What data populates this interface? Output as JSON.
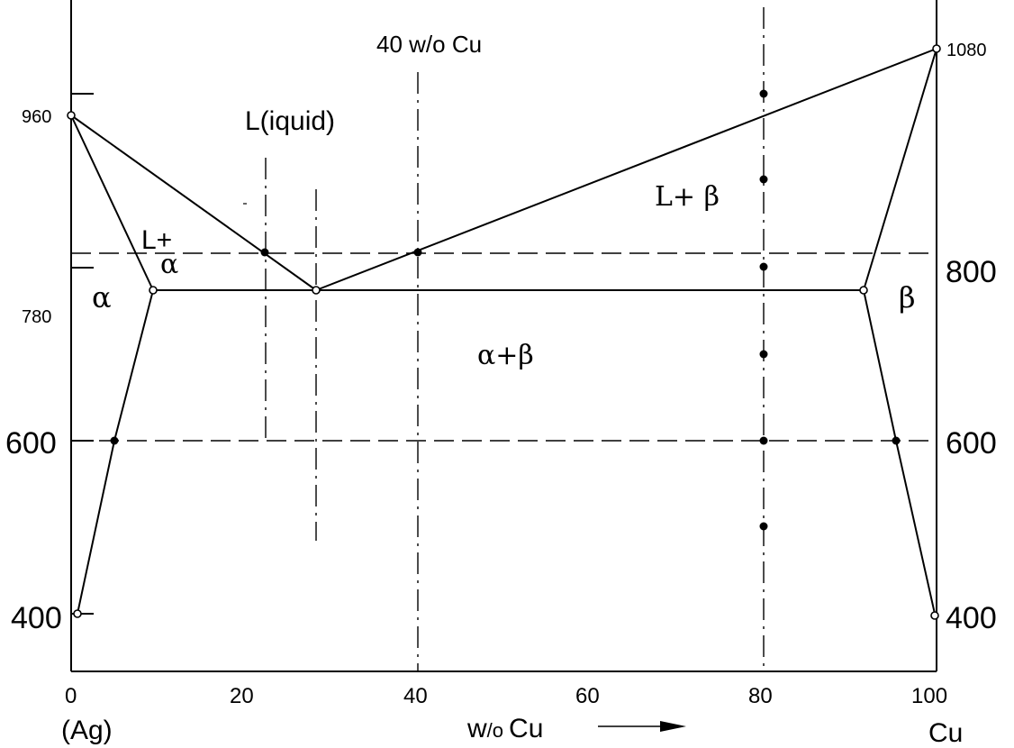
{
  "title_label": "40 w/o Cu",
  "xaxis": {
    "ticks": [
      {
        "value": 0,
        "label": "0"
      },
      {
        "value": 20,
        "label": "20"
      },
      {
        "value": 40,
        "label": "40"
      },
      {
        "value": 60,
        "label": "60"
      },
      {
        "value": 80,
        "label": "80"
      },
      {
        "value": 100,
        "label": "100"
      }
    ],
    "left_end_label": "(Ag)",
    "right_end_label": "Cu",
    "axis_label_main": "w",
    "axis_label_sub": "/o",
    "axis_label_elem": "Cu"
  },
  "left_axis_labels": [
    {
      "value": 960,
      "label": "960"
    },
    {
      "value": 780,
      "label": "780"
    },
    {
      "value": 600,
      "label": "600"
    },
    {
      "value": 400,
      "label": "400"
    }
  ],
  "right_axis_labels": [
    {
      "value": 1080,
      "label": "1080"
    },
    {
      "value": 800,
      "label": "800"
    },
    {
      "value": 600,
      "label": "600"
    },
    {
      "value": 400,
      "label": "400"
    }
  ],
  "regions": {
    "liquid": "L(iquid)",
    "l_alpha_top": "L+",
    "l_alpha_bottom": "α",
    "alpha": "α",
    "l_beta": "L+ β",
    "alpha_beta": "α+β",
    "beta": "β"
  },
  "diagram_data": {
    "melting_point_ag": 960,
    "melting_point_cu": 1080,
    "eutectic_temperature": 780,
    "eutectic_composition": 28.5,
    "alpha_max_solubility": 9.5,
    "beta_max_solubility": 91.5,
    "liquidus": [
      [
        0,
        960
      ],
      [
        28.5,
        780
      ],
      [
        100,
        1080
      ]
    ],
    "solidus_alpha": [
      [
        0,
        960
      ],
      [
        9.5,
        780
      ]
    ],
    "solidus_beta": [
      [
        100,
        1080
      ],
      [
        91.5,
        780
      ]
    ],
    "solvus_alpha": [
      [
        9.5,
        780
      ],
      [
        5,
        600
      ],
      [
        1,
        400
      ]
    ],
    "solvus_beta": [
      [
        91.5,
        780
      ],
      [
        95.5,
        600
      ],
      [
        100,
        400
      ]
    ],
    "tie_line_temperature_upper": 820,
    "tie_line_temperature_lower": 600,
    "markers": [
      [
        22.5,
        820
      ],
      [
        40,
        820
      ],
      [
        80,
        1030
      ],
      [
        80,
        900
      ],
      [
        80,
        800
      ],
      [
        80,
        700
      ],
      [
        80,
        600
      ],
      [
        80,
        500
      ],
      [
        5,
        600
      ],
      [
        95.5,
        600
      ]
    ]
  }
}
